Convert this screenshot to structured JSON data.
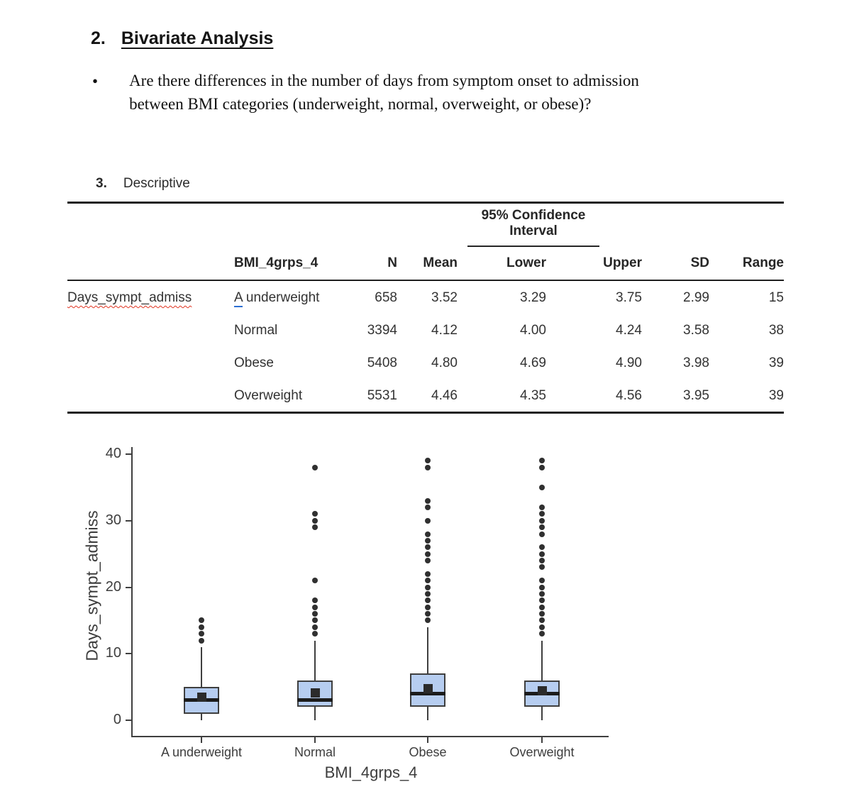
{
  "document": {
    "section2": {
      "number": "2.",
      "title": "Bivariate Analysis"
    },
    "bullet": {
      "marker": "•",
      "lines": [
        "Are there differences in the number of days from symptom onset to admission",
        "between BMI categories (underweight, normal, overweight, or obese)?"
      ]
    },
    "section3": {
      "number": "3.",
      "title": "Descriptive"
    }
  },
  "table": {
    "spanner": "95% Confidence Interval",
    "columns": [
      "BMI_4grps_4",
      "N",
      "Mean",
      "Lower",
      "Upper",
      "SD",
      "Range"
    ],
    "row_label": "Days_sympt_admiss",
    "row_label_spellcheck_underline": true,
    "rows": [
      {
        "bmi": "A underweight",
        "bmi_first_letter_blue_underline": true,
        "n": "658",
        "mean": "3.52",
        "lower": "3.29",
        "upper": "3.75",
        "sd": "2.99",
        "range": "15"
      },
      {
        "bmi": "Normal",
        "bmi_first_letter_blue_underline": false,
        "n": "3394",
        "mean": "4.12",
        "lower": "4.00",
        "upper": "4.24",
        "sd": "3.58",
        "range": "38"
      },
      {
        "bmi": "Obese",
        "bmi_first_letter_blue_underline": false,
        "n": "5408",
        "mean": "4.80",
        "lower": "4.69",
        "upper": "4.90",
        "sd": "3.98",
        "range": "39"
      },
      {
        "bmi": "Overweight",
        "bmi_first_letter_blue_underline": false,
        "n": "5531",
        "mean": "4.46",
        "lower": "4.35",
        "upper": "4.56",
        "sd": "3.95",
        "range": "39"
      }
    ]
  },
  "chart_data": {
    "type": "boxplot",
    "xlabel": "BMI_4grps_4",
    "ylabel": "Days_sympt_admiss",
    "ylim": [
      0,
      40
    ],
    "yticks": [
      0,
      10,
      20,
      30,
      40
    ],
    "categories": [
      "A underweight",
      "Normal",
      "Obese",
      "Overweight"
    ],
    "series": [
      {
        "name": "A underweight",
        "whisker_low": 0,
        "q1": 1,
        "median": 3,
        "mean": 3.52,
        "q3": 5,
        "whisker_high": 11,
        "outliers": [
          12,
          13,
          14,
          15
        ]
      },
      {
        "name": "Normal",
        "whisker_low": 0,
        "q1": 2,
        "median": 3,
        "mean": 4.12,
        "q3": 6,
        "whisker_high": 12,
        "outliers": [
          13,
          14,
          15,
          16,
          17,
          18,
          21,
          29,
          30,
          31,
          38
        ]
      },
      {
        "name": "Obese",
        "whisker_low": 0,
        "q1": 2,
        "median": 4,
        "mean": 4.8,
        "q3": 7,
        "whisker_high": 14,
        "outliers": [
          15,
          16,
          17,
          18,
          19,
          20,
          21,
          22,
          24,
          25,
          26,
          27,
          28,
          30,
          32,
          33,
          38,
          39
        ]
      },
      {
        "name": "Overweight",
        "whisker_low": 0,
        "q1": 2,
        "median": 4,
        "mean": 4.46,
        "q3": 6,
        "whisker_high": 12,
        "outliers": [
          13,
          14,
          15,
          16,
          17,
          18,
          19,
          20,
          21,
          23,
          24,
          25,
          26,
          28,
          29,
          30,
          31,
          32,
          35,
          38,
          39
        ]
      }
    ],
    "legend": "none",
    "grid": false,
    "colors": {
      "box_fill": "#b6cdf0",
      "box_border": "#3f3f3f",
      "median": "#1c1c1c",
      "mean_marker": "#2b2b2b",
      "outlier": "#303030",
      "spellcheck_red": "#e0321f",
      "autocorrect_blue": "#2d6fd2"
    }
  }
}
